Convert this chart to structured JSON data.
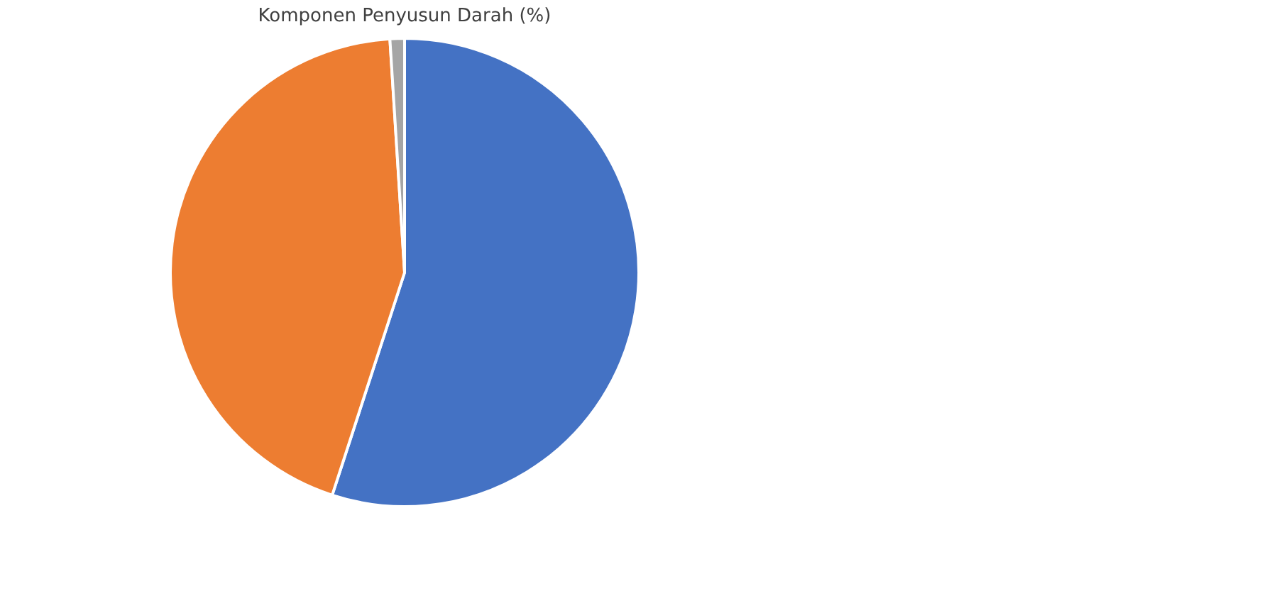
{
  "chart_data": {
    "type": "pie",
    "title": "Komponen Penyusun Darah (%)",
    "categories": [
      null,
      null,
      null
    ],
    "values": [
      55,
      44,
      1
    ],
    "colors": [
      "#4472c4",
      "#ed7d31",
      "#a5a5a5"
    ],
    "legend": false
  }
}
